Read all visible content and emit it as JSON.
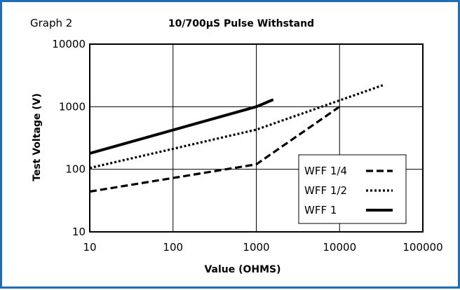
{
  "graph_label": "Graph 2",
  "chart_data": {
    "type": "line",
    "title": "10/700µS Pulse Withstand",
    "xlabel": "Value (OHMS)",
    "ylabel": "Test Voltage (V)",
    "xscale": "log",
    "yscale": "log",
    "xlim": [
      10,
      100000
    ],
    "ylim": [
      10,
      10000
    ],
    "xticks": [
      "10",
      "100",
      "1000",
      "10000",
      "100000"
    ],
    "yticks": [
      "10",
      "100",
      "1000",
      "10000"
    ],
    "grid": true,
    "legend_position": "bottom-right",
    "series": [
      {
        "name": "WFF 1/4",
        "style": "dashed",
        "x": [
          10,
          1000,
          10000
        ],
        "y": [
          44,
          120,
          1000
        ]
      },
      {
        "name": "WFF 1/2",
        "style": "dotted",
        "x": [
          10,
          1000,
          33000
        ],
        "y": [
          105,
          430,
          2200
        ]
      },
      {
        "name": "WFF 1",
        "style": "solid",
        "x": [
          10,
          1000,
          1600
        ],
        "y": [
          180,
          1000,
          1300
        ]
      }
    ]
  }
}
